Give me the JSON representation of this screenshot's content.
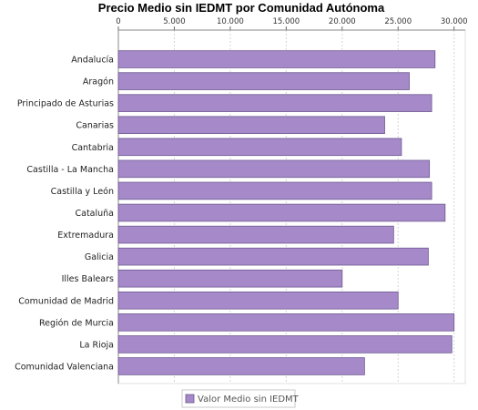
{
  "chart_data": {
    "type": "bar",
    "orientation": "horizontal",
    "title": "Precio Medio sin IEDMT por Comunidad Autónoma",
    "categories": [
      "Andalucía",
      "Aragón",
      "Principado de Asturias",
      "Canarias",
      "Cantabria",
      "Castilla - La Mancha",
      "Castilla y León",
      "Cataluña",
      "Extremadura",
      "Galicia",
      "Illes Balears",
      "Comunidad de Madrid",
      "Región de Murcia",
      "La Rioja",
      "Comunidad Valenciana"
    ],
    "series": [
      {
        "name": "Valor Medio sin IEDMT",
        "color": "#a589c9",
        "values": [
          28300,
          26000,
          28000,
          23800,
          25300,
          27800,
          28000,
          29200,
          24600,
          27700,
          20000,
          25000,
          30000,
          29800,
          22000
        ]
      }
    ],
    "xlim": [
      0,
      31000
    ],
    "ticks": [
      "0",
      "5.000",
      "10.000",
      "15.000",
      "20.000",
      "25.000",
      "30.000"
    ],
    "tick_values": [
      0,
      5000,
      10000,
      15000,
      20000,
      25000,
      30000
    ],
    "axis_position": "top",
    "grid": true,
    "legend_position": "bottom"
  }
}
